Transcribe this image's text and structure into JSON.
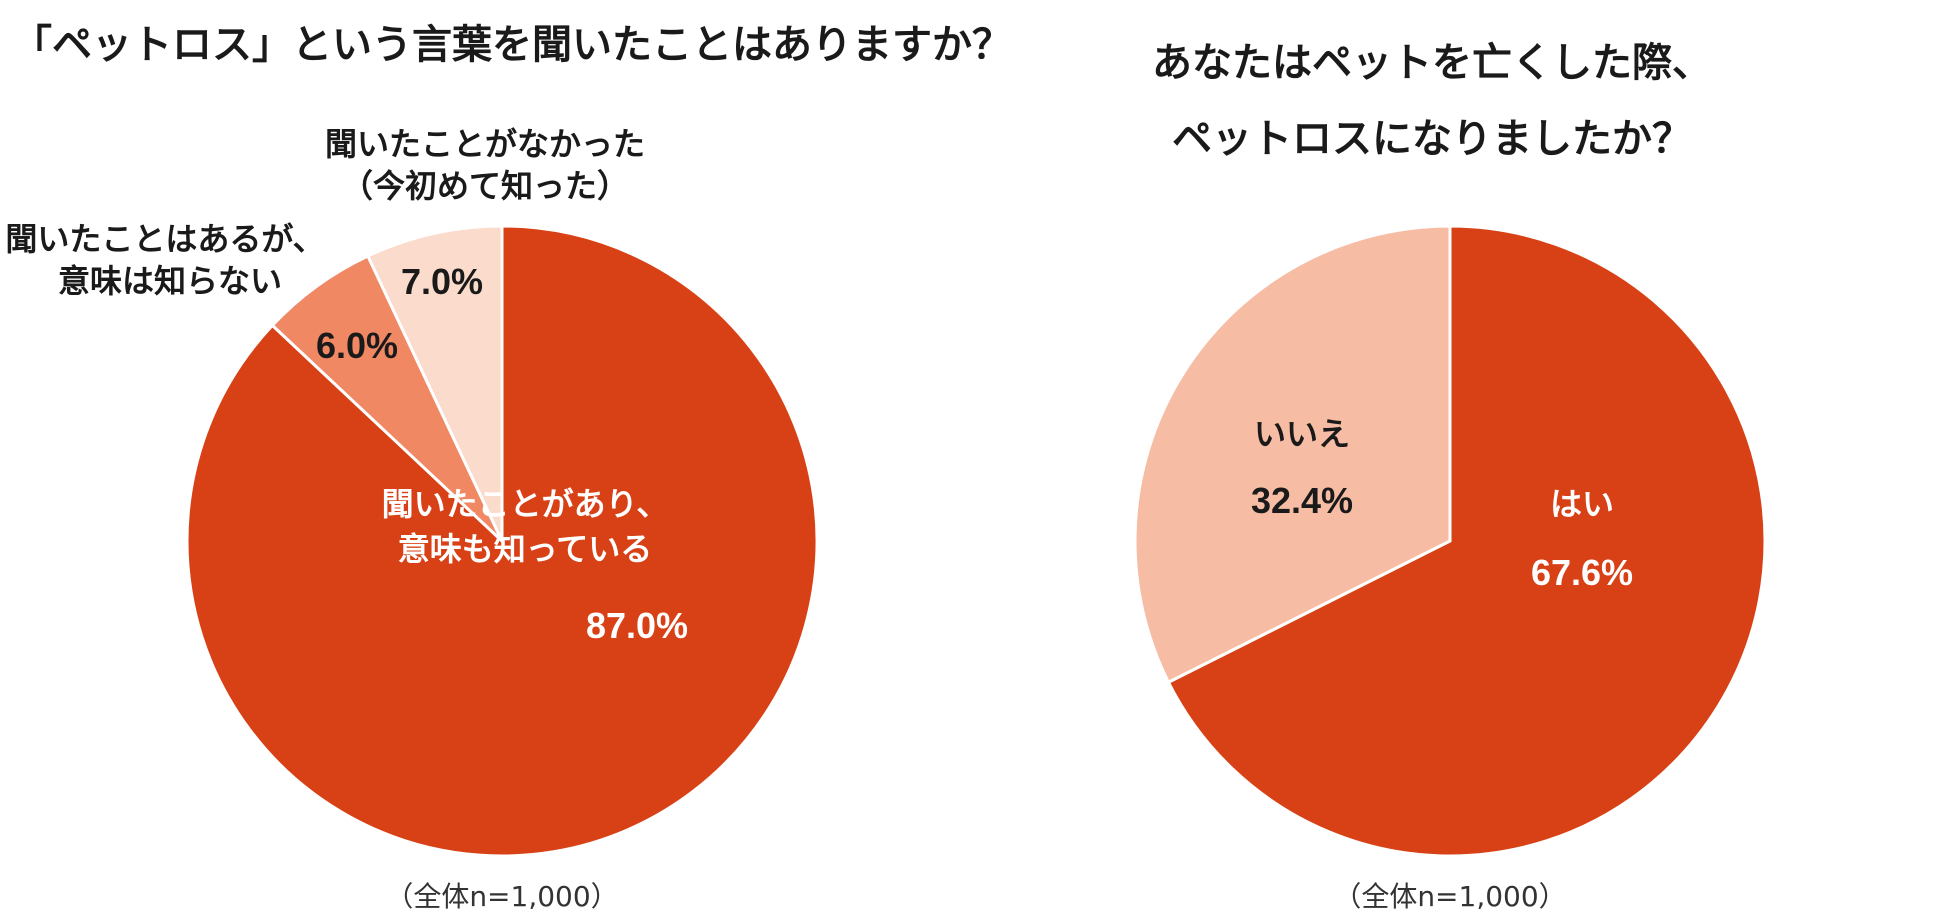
{
  "chart_data": [
    {
      "type": "pie",
      "title": "「ペットロス」という言葉を聞いたことはありますか？",
      "note": "（全体n=1,000）",
      "slices": [
        {
          "label_lines": [
            "聞いたことがあり、",
            "意味も知っている"
          ],
          "value": 87.0,
          "value_label": "87.0%",
          "color": "#d84015"
        },
        {
          "label_lines": [
            "聞いたことはあるが、",
            "意味は知らない"
          ],
          "value": 6.0,
          "value_label": "6.0%",
          "color": "#f08864"
        },
        {
          "label_lines": [
            "聞いたことがなかった",
            "（今初めて知った）"
          ],
          "value": 7.0,
          "value_label": "7.0%",
          "color": "#fadbcc"
        }
      ]
    },
    {
      "type": "pie",
      "title_lines": [
        "あなたはペットを亡くした際、",
        "ペットロスになりましたか？"
      ],
      "note": "（全体n=1,000）",
      "slices": [
        {
          "label_lines": [
            "はい"
          ],
          "value": 67.6,
          "value_label": "67.6%",
          "color": "#d84015"
        },
        {
          "label_lines": [
            "いいえ"
          ],
          "value": 32.4,
          "value_label": "32.4%",
          "color": "#f7bca4"
        }
      ]
    }
  ]
}
